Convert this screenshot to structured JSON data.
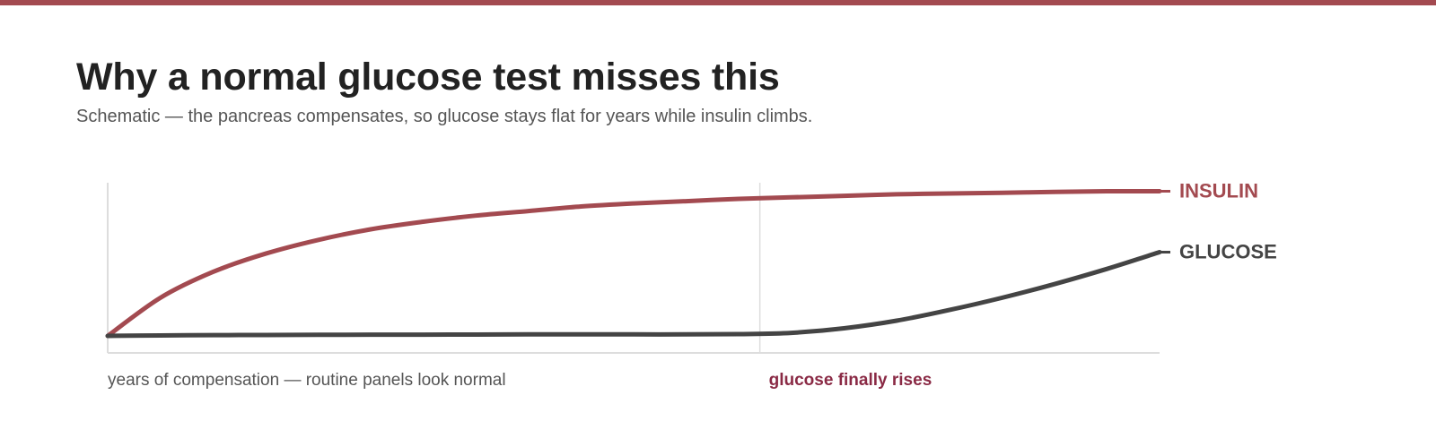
{
  "colors": {
    "accent": "#a34a50",
    "insulin": "#a34a50",
    "glucose": "#444444",
    "phase_label": "#8a2a45",
    "axis": "#dddddd",
    "title": "#222222",
    "subtitle": "#555555"
  },
  "header": {
    "title": "Why a normal glucose test misses this",
    "subtitle": "Schematic — the pancreas compensates, so glucose stays flat for years while insulin climbs."
  },
  "chart_data": {
    "type": "line",
    "title": "Why a normal glucose test misses this",
    "subtitle": "Schematic — the pancreas compensates, so glucose stays flat for years while insulin climbs.",
    "xlabel": "",
    "ylabel": "",
    "x": [
      0,
      5,
      10,
      15,
      20,
      25,
      30,
      35,
      40,
      45,
      50,
      55,
      60,
      65,
      70,
      75,
      80,
      85,
      90,
      95,
      100
    ],
    "xlim": [
      0,
      100
    ],
    "ylim": [
      0,
      100
    ],
    "grid": false,
    "legend": "end-of-line labels",
    "divider_x": 62,
    "series": [
      {
        "name": "INSULIN",
        "color": "#a34a50",
        "values": [
          0,
          25,
          42,
          54,
          63,
          70,
          75,
          79,
          82,
          85,
          87,
          88.5,
          90,
          91,
          92,
          93,
          93.5,
          94,
          94.5,
          95,
          95
        ]
      },
      {
        "name": "GLUCOSE",
        "color": "#444444",
        "values": [
          0,
          0.3,
          0.5,
          0.6,
          0.7,
          0.8,
          0.8,
          0.9,
          1,
          1,
          1,
          1,
          1.2,
          2,
          5,
          10,
          17,
          25,
          34,
          44,
          55
        ]
      }
    ],
    "annotations": [
      {
        "text": "years of compensation — routine panels look normal",
        "x": 0,
        "color": "#555555",
        "bold": false
      },
      {
        "text": "glucose finally rises",
        "x": 62,
        "color": "#8a2a45",
        "bold": true
      }
    ]
  }
}
